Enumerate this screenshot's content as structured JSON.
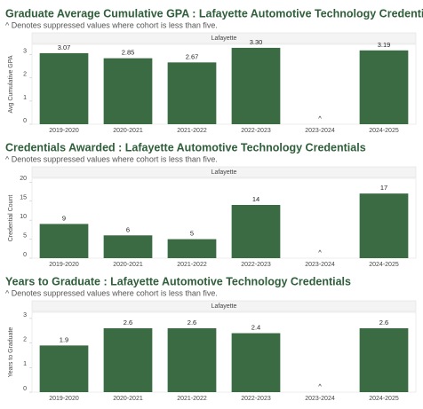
{
  "chart_data": [
    {
      "type": "bar",
      "title": "Graduate Average Cumulative GPA : Lafayette Automotive Technology Credentials",
      "subtitle": "^ Denotes suppressed values where cohort is less than five.",
      "panel_label": "Lafayette",
      "y_label": "Avg Cumulative GPA",
      "categories": [
        "2019-2020",
        "2020-2021",
        "2021-2022",
        "2022-2023",
        "2023-2024",
        "2024-2025"
      ],
      "values": [
        3.07,
        2.85,
        2.67,
        3.3,
        null,
        3.19
      ],
      "value_labels": [
        "3.07",
        "2.85",
        "2.67",
        "3.30",
        "^",
        "3.19"
      ],
      "color": "#3b6b43",
      "ylim": [
        0,
        3.45
      ],
      "yticks": [
        0,
        1,
        2,
        3
      ]
    },
    {
      "type": "bar",
      "title": "Credentials Awarded : Lafayette Automotive Technology Credentials",
      "subtitle": "^ Denotes suppressed values where cohort is less than five.",
      "panel_label": "Lafayette",
      "y_label": "Credential Count",
      "categories": [
        "2019-2020",
        "2020-2021",
        "2021-2022",
        "2022-2023",
        "2023-2024",
        "2024-2025"
      ],
      "values": [
        9,
        6,
        5,
        14,
        null,
        17
      ],
      "value_labels": [
        "9",
        "6",
        "5",
        "14",
        "^",
        "17"
      ],
      "color": "#3b6b43",
      "ylim": [
        0,
        21
      ],
      "yticks": [
        0,
        5,
        10,
        15,
        20
      ]
    },
    {
      "type": "bar",
      "title": "Years to Graduate : Lafayette Automotive Technology Credentials",
      "subtitle": "^ Denotes suppressed values where cohort is less than five.",
      "panel_label": "Lafayette",
      "y_label": "Years to Graduate",
      "categories": [
        "2019-2020",
        "2020-2021",
        "2021-2022",
        "2022-2023",
        "2023-2024",
        "2024-2025"
      ],
      "values": [
        1.9,
        2.6,
        2.6,
        2.4,
        null,
        2.6
      ],
      "value_labels": [
        "1.9",
        "2.6",
        "2.6",
        "2.4",
        "^",
        "2.6"
      ],
      "color": "#3b6b43",
      "ylim": [
        0,
        3.25
      ],
      "yticks": [
        0,
        1,
        2,
        3
      ]
    }
  ]
}
